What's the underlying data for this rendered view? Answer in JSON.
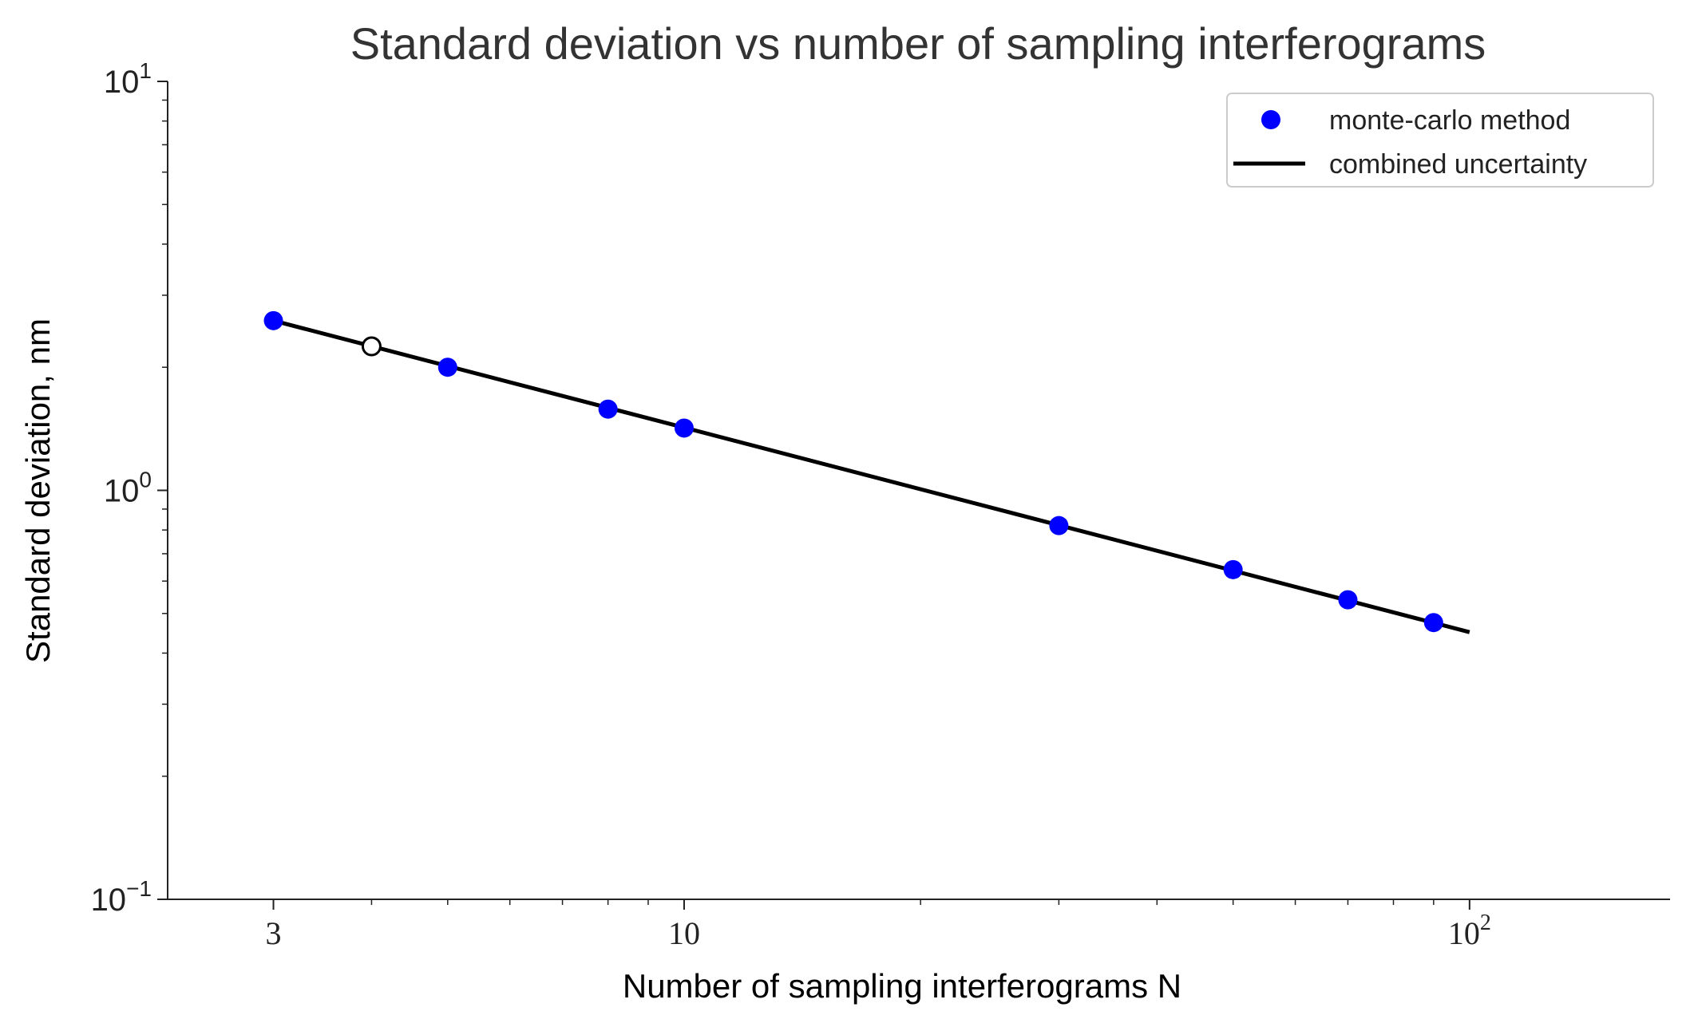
{
  "chart_data": {
    "type": "scatter",
    "title": "Standard deviation vs number of sampling interferograms",
    "xlabel": "Number of sampling interferograms N",
    "ylabel": "Standard deviation, nm",
    "xscale": "log",
    "yscale": "log",
    "xlim": [
      2.2,
      180
    ],
    "ylim": [
      0.1,
      10
    ],
    "x_ticks": [
      {
        "value": 3,
        "base": "3",
        "exp": ""
      },
      {
        "value": 10,
        "base": "10",
        "exp": ""
      },
      {
        "value": 100,
        "base": "10",
        "exp": "2"
      }
    ],
    "y_ticks": [
      {
        "value": 0.1,
        "base": "10",
        "exp": "−1"
      },
      {
        "value": 1,
        "base": "10",
        "exp": "0"
      },
      {
        "value": 10,
        "base": "10",
        "exp": "1"
      }
    ],
    "grid": false,
    "legend_position": "top-right",
    "series": [
      {
        "name": "monte-carlo method",
        "kind": "scatter",
        "color": "#0000ff",
        "x": [
          3,
          5,
          8,
          10,
          30,
          50,
          70,
          90
        ],
        "y": [
          2.6,
          2.0,
          1.58,
          1.42,
          0.82,
          0.64,
          0.54,
          0.475
        ]
      },
      {
        "name": "combined uncertainty",
        "kind": "line",
        "color": "#000000",
        "x": [
          3,
          100
        ],
        "y": [
          2.6,
          0.45
        ]
      }
    ],
    "highlighted_point": {
      "x": 4,
      "y": 2.25,
      "fill": "#ffffff",
      "stroke": "#000000"
    }
  }
}
